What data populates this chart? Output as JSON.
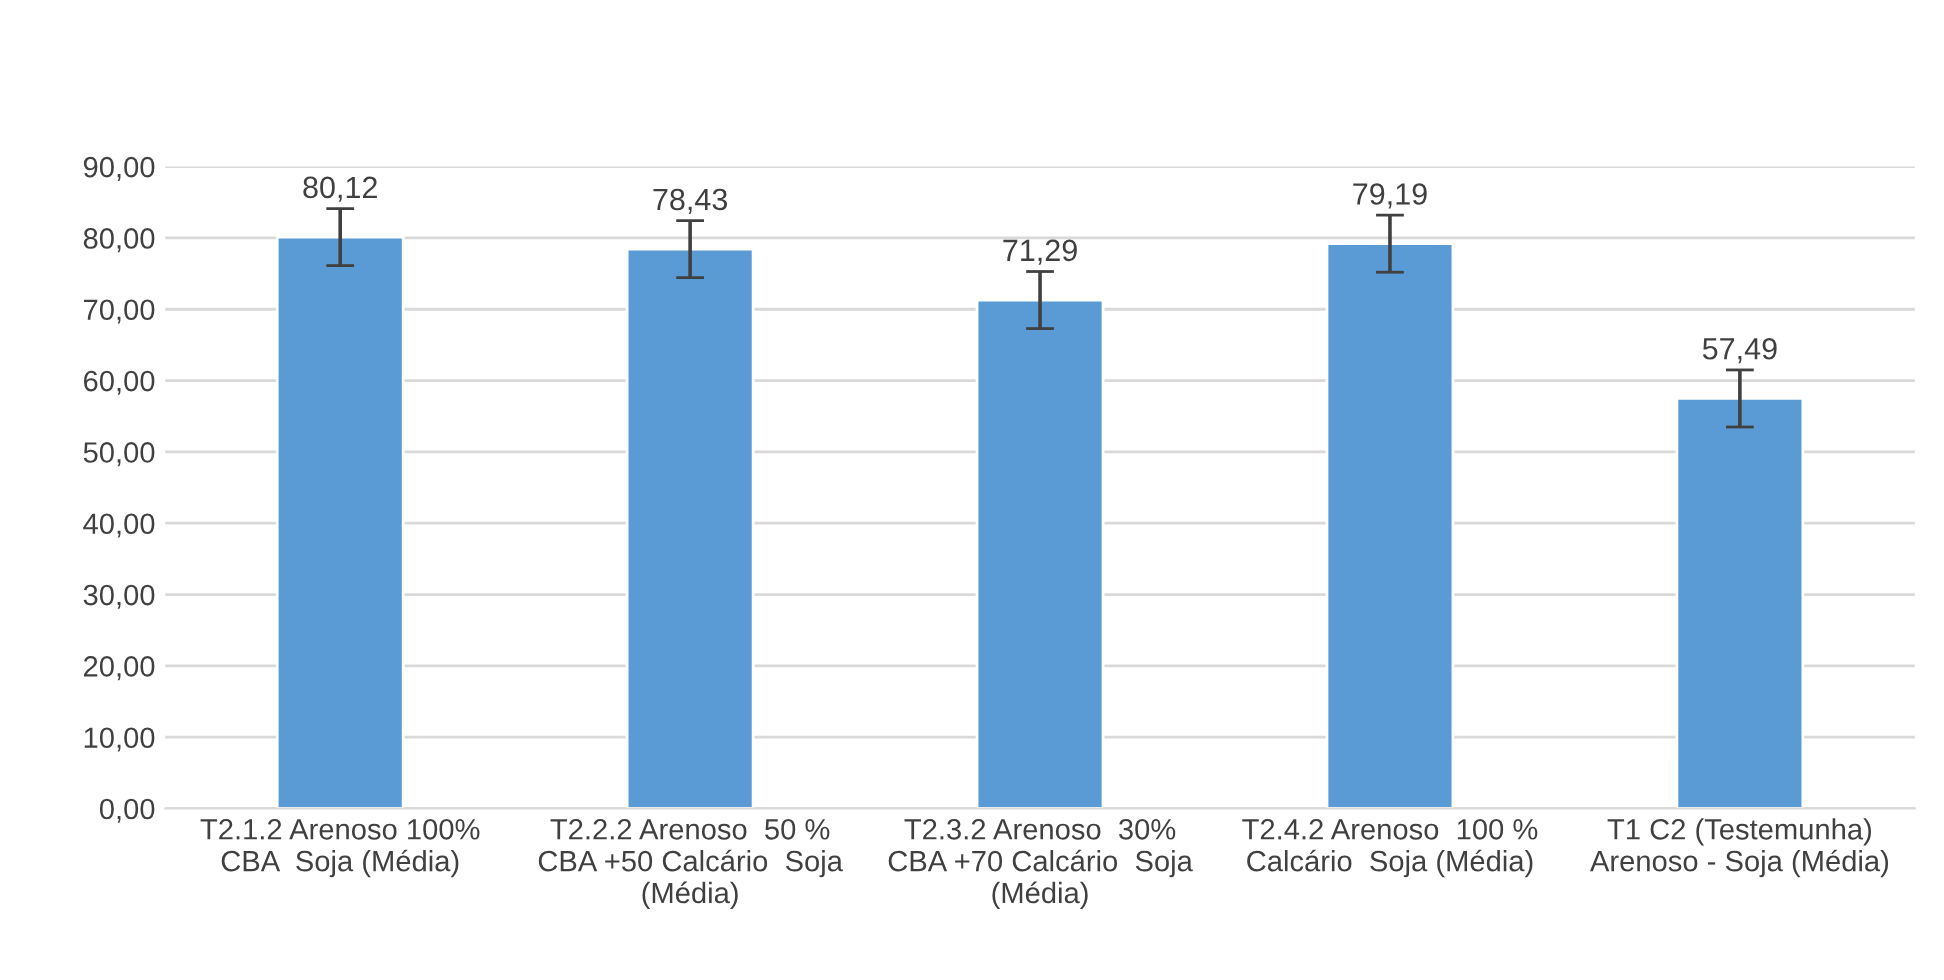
{
  "chart_data": {
    "type": "bar",
    "categories": [
      "T2.1.2 Arenoso 100%\nCBA  Soja (Média)",
      "T2.2.2 Arenoso  50 %\nCBA +50 Calcário  Soja\n(Média)",
      "T2.3.2 Arenoso  30%\nCBA +70 Calcário  Soja\n(Média)",
      "T2.4.2 Arenoso  100 %\nCalcário  Soja (Média)",
      "T1 C2 (Testemunha)\nArenoso - Soja (Média)"
    ],
    "values": [
      80.12,
      78.43,
      71.29,
      79.19,
      57.49
    ],
    "value_labels": [
      "80,12",
      "78,43",
      "71,29",
      "79,19",
      "57,49"
    ],
    "errors": [
      4,
      4,
      4,
      4,
      4
    ],
    "color": "#5b9bd5",
    "ylim": [
      0,
      90
    ],
    "yticks": [
      {
        "value": 0,
        "label": "0,00"
      },
      {
        "value": 10,
        "label": "10,00"
      },
      {
        "value": 20,
        "label": "20,00"
      },
      {
        "value": 30,
        "label": "30,00"
      },
      {
        "value": 40,
        "label": "40,00"
      },
      {
        "value": 50,
        "label": "50,00"
      },
      {
        "value": 60,
        "label": "60,00"
      },
      {
        "value": 70,
        "label": "70,00"
      },
      {
        "value": 80,
        "label": "80,00"
      },
      {
        "value": 90,
        "label": "90,00"
      }
    ],
    "grid": "y"
  }
}
